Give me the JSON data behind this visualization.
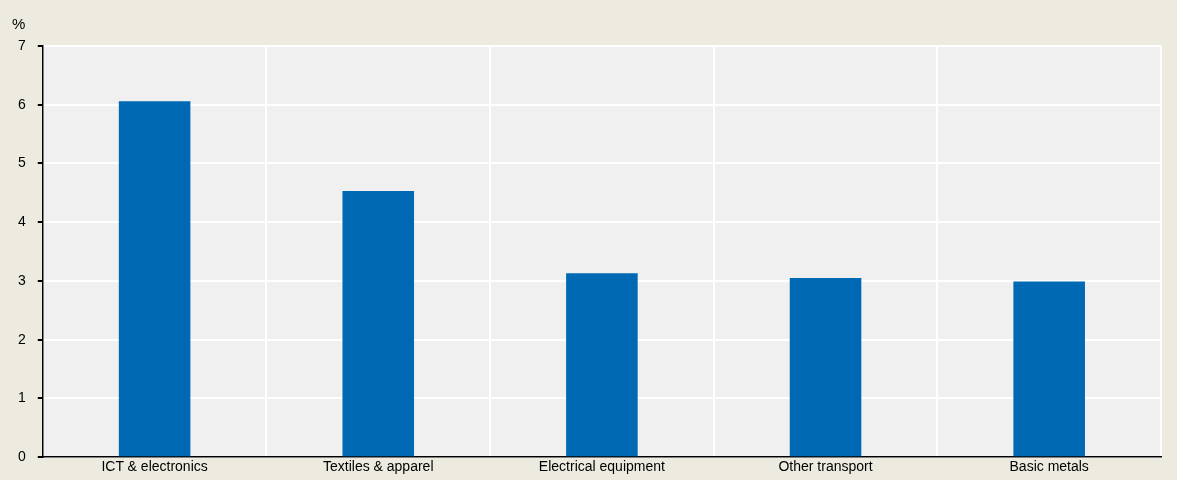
{
  "chart_data": {
    "type": "bar",
    "ylabel": "%",
    "categories": [
      "ICT & electronics",
      "Textiles & apparel",
      "Electrical equipment",
      "Other transport",
      "Basic metals"
    ],
    "values": [
      6.06,
      4.53,
      3.13,
      3.05,
      2.99
    ],
    "color": "#0069b4",
    "ylim": [
      0,
      7
    ],
    "yticks": [
      0,
      1,
      2,
      3,
      4,
      5,
      6,
      7
    ],
    "grid": true
  }
}
